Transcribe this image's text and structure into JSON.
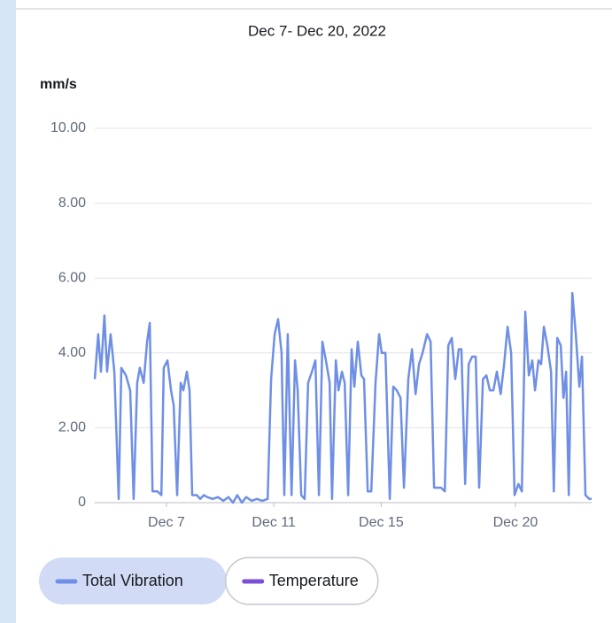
{
  "chart_data": {
    "type": "line",
    "title": "Dec 7- Dec 20, 2022",
    "y_label": "mm/s",
    "xlim": [
      4.33,
      22.84
    ],
    "xticks": [
      {
        "value": 7,
        "label": "Dec 7"
      },
      {
        "value": 11,
        "label": "Dec 11"
      },
      {
        "value": 15,
        "label": "Dec 15"
      },
      {
        "value": 20,
        "label": "Dec 20"
      }
    ],
    "ylim": [
      0,
      10
    ],
    "yticks": [
      0,
      {
        "value": 2,
        "label": "2.00"
      },
      {
        "value": 4,
        "label": "4.00"
      },
      {
        "value": 6,
        "label": "6.00"
      },
      {
        "value": 8,
        "label": "8.00"
      },
      {
        "value": 10,
        "label": "10.00"
      }
    ],
    "grid": true,
    "series": [
      {
        "name": "Total Vibration",
        "color": "#6f8fe6",
        "visible": true,
        "x": [
          4.33,
          4.46,
          4.56,
          4.69,
          4.79,
          4.92,
          5.06,
          5.22,
          5.32,
          5.49,
          5.65,
          5.78,
          5.91,
          6.01,
          6.15,
          6.28,
          6.38,
          6.48,
          6.67,
          6.81,
          6.9,
          7.04,
          7.17,
          7.27,
          7.4,
          7.53,
          7.63,
          7.76,
          7.86,
          7.96,
          8.13,
          8.26,
          8.39,
          8.52,
          8.72,
          8.92,
          9.12,
          9.31,
          9.48,
          9.64,
          9.81,
          9.97,
          10.17,
          10.37,
          10.57,
          10.77,
          10.9,
          11.03,
          11.16,
          11.29,
          11.39,
          11.52,
          11.66,
          11.79,
          11.89,
          12.02,
          12.15,
          12.28,
          12.42,
          12.55,
          12.68,
          12.81,
          12.94,
          13.08,
          13.17,
          13.31,
          13.41,
          13.54,
          13.64,
          13.77,
          13.9,
          14.0,
          14.13,
          14.26,
          14.36,
          14.5,
          14.63,
          14.79,
          14.92,
          15.02,
          15.16,
          15.32,
          15.45,
          15.58,
          15.72,
          15.85,
          16.01,
          16.15,
          16.28,
          16.41,
          16.54,
          16.71,
          16.84,
          16.97,
          17.23,
          17.37,
          17.5,
          17.63,
          17.76,
          17.89,
          17.99,
          18.13,
          18.26,
          18.39,
          18.52,
          18.65,
          18.79,
          18.92,
          19.05,
          19.18,
          19.31,
          19.45,
          19.58,
          19.71,
          19.84,
          19.97,
          20.11,
          20.24,
          20.37,
          20.5,
          20.63,
          20.73,
          20.86,
          20.96,
          21.06,
          21.19,
          21.33,
          21.43,
          21.56,
          21.69,
          21.79,
          21.89,
          21.99,
          22.12,
          22.25,
          22.38,
          22.48,
          22.61,
          22.75,
          22.84
        ],
        "values": [
          3.3,
          4.5,
          3.5,
          5.0,
          3.5,
          4.5,
          3.5,
          0.1,
          3.6,
          3.4,
          3.0,
          0.1,
          3.2,
          3.6,
          3.2,
          4.3,
          4.8,
          0.3,
          0.3,
          0.2,
          3.6,
          3.8,
          3.0,
          2.6,
          0.2,
          3.2,
          3.0,
          3.5,
          3.0,
          0.2,
          0.2,
          0.1,
          0.2,
          0.15,
          0.1,
          0.15,
          0.05,
          0.15,
          0.0,
          0.2,
          0.0,
          0.15,
          0.05,
          0.1,
          0.05,
          0.1,
          3.3,
          4.5,
          4.9,
          4.0,
          0.2,
          4.5,
          0.2,
          3.8,
          3.0,
          0.2,
          0.1,
          3.2,
          3.5,
          3.8,
          0.2,
          4.3,
          3.8,
          3.2,
          0.1,
          3.8,
          3.0,
          3.5,
          3.2,
          0.2,
          4.1,
          3.1,
          4.3,
          3.4,
          3.3,
          0.3,
          0.3,
          3.2,
          4.5,
          4.0,
          4.0,
          0.1,
          3.1,
          3.0,
          2.8,
          0.4,
          3.3,
          4.1,
          2.9,
          3.7,
          4.0,
          4.5,
          4.3,
          0.4,
          0.4,
          0.3,
          4.2,
          4.4,
          3.3,
          4.1,
          4.1,
          0.5,
          3.7,
          3.9,
          3.9,
          0.4,
          3.3,
          3.4,
          3.0,
          3.0,
          3.5,
          2.9,
          3.7,
          4.7,
          4.0,
          0.2,
          0.5,
          0.3,
          5.1,
          3.4,
          3.8,
          3.0,
          3.8,
          3.7,
          4.7,
          4.2,
          3.5,
          0.3,
          4.4,
          4.2,
          2.8,
          3.5,
          0.2,
          5.6,
          4.5,
          3.1,
          3.9,
          0.2,
          0.1,
          0.1
        ]
      },
      {
        "name": "Temperature",
        "color": "#7b4fd6",
        "visible": false,
        "x": [],
        "values": []
      }
    ]
  }
}
